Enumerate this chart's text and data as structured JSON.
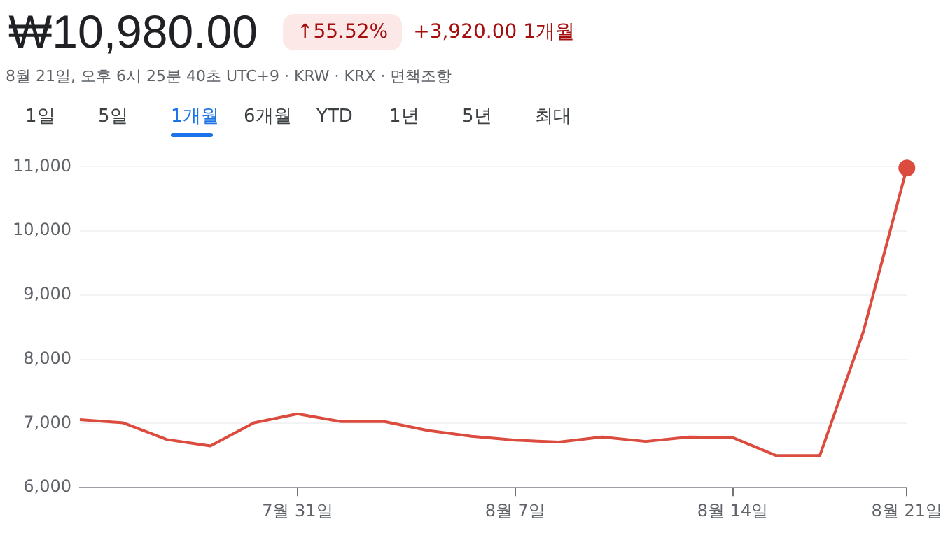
{
  "chart_data": {
    "type": "line",
    "title": "₩10,980.00",
    "subtitle": "8월 21일, 오후 6시 25분 40초 UTC+9 · KRW · KRX · 면책조항",
    "annotations": [
      "↑55.52%",
      "+3,920.00 1개월",
      "1일",
      "5일",
      "1개월",
      "6개월",
      "YTD",
      "1년",
      "5년",
      "최대"
    ],
    "categories": [
      null,
      null,
      null,
      null,
      null,
      "7월 31일",
      null,
      null,
      null,
      null,
      "8월 7일",
      null,
      null,
      null,
      null,
      "8월 14일",
      null,
      null,
      null,
      "8월 21일"
    ],
    "series": [
      {
        "color": "#db4c3f",
        "values": [
          7060,
          7010,
          6750,
          6650,
          7010,
          7150,
          7030,
          7030,
          6890,
          6800,
          6740,
          6710,
          6790,
          6720,
          6790,
          6780,
          6500,
          6500,
          8430,
          10980
        ]
      }
    ],
    "ylim": [
      6000,
      11000
    ],
    "yticks": [
      {
        "value": 6000,
        "label": "6,000"
      },
      {
        "value": 7000,
        "label": "7,000"
      },
      {
        "value": 8000,
        "label": "8,000"
      },
      {
        "value": 9000,
        "label": "9,000"
      },
      {
        "value": 10000,
        "label": "10,000"
      },
      {
        "value": 11000,
        "label": "11,000"
      }
    ],
    "grid": "y"
  }
}
